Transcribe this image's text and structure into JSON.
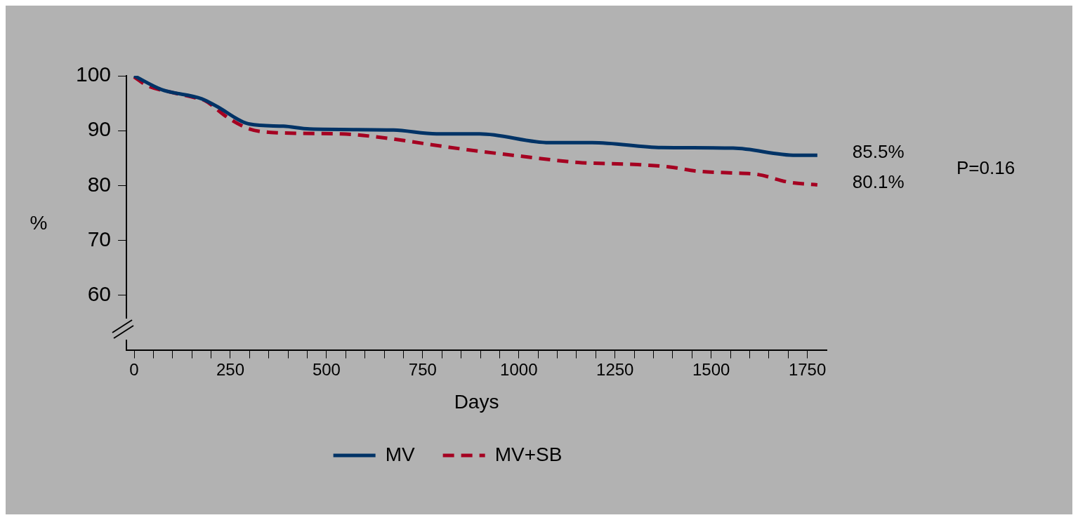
{
  "chart_data": {
    "type": "line",
    "xlabel": "Days",
    "ylabel": "%",
    "xlim": [
      -20,
      1800
    ],
    "ylim": [
      50,
      100
    ],
    "xticks": [
      {
        "value": 0,
        "label": "0"
      },
      {
        "value": 50,
        "label": null
      },
      {
        "value": 100,
        "label": null
      },
      {
        "value": 150,
        "label": null
      },
      {
        "value": 200,
        "label": null
      },
      {
        "value": 250,
        "label": "250"
      },
      {
        "value": 300,
        "label": null
      },
      {
        "value": 350,
        "label": null
      },
      {
        "value": 400,
        "label": null
      },
      {
        "value": 450,
        "label": null
      },
      {
        "value": 500,
        "label": "500"
      },
      {
        "value": 550,
        "label": null
      },
      {
        "value": 600,
        "label": null
      },
      {
        "value": 650,
        "label": null
      },
      {
        "value": 700,
        "label": null
      },
      {
        "value": 750,
        "label": "750"
      },
      {
        "value": 800,
        "label": null
      },
      {
        "value": 850,
        "label": null
      },
      {
        "value": 900,
        "label": null
      },
      {
        "value": 950,
        "label": null
      },
      {
        "value": 1000,
        "label": "1000"
      },
      {
        "value": 1050,
        "label": null
      },
      {
        "value": 1100,
        "label": null
      },
      {
        "value": 1150,
        "label": null
      },
      {
        "value": 1200,
        "label": null
      },
      {
        "value": 1250,
        "label": "1250"
      },
      {
        "value": 1300,
        "label": null
      },
      {
        "value": 1350,
        "label": null
      },
      {
        "value": 1400,
        "label": null
      },
      {
        "value": 1450,
        "label": null
      },
      {
        "value": 1500,
        "label": "1500"
      },
      {
        "value": 1550,
        "label": null
      },
      {
        "value": 1600,
        "label": null
      },
      {
        "value": 1650,
        "label": null
      },
      {
        "value": 1700,
        "label": null
      },
      {
        "value": 1750,
        "label": "1750"
      }
    ],
    "yticks": [
      60,
      70,
      80,
      90,
      100
    ],
    "grid": false,
    "legend": "bottom",
    "marker": "none",
    "series": [
      {
        "name": "MV",
        "color": "#003366",
        "line_style": "solid",
        "x": [
          0,
          71,
          176,
          213,
          300,
          388,
          456,
          674,
          786,
          898,
          1079,
          1191,
          1371,
          1557,
          1720,
          1776
        ],
        "values": [
          100,
          97.5,
          95.8,
          94.5,
          91.2,
          90.8,
          90.3,
          90.1,
          89.4,
          89.4,
          87.8,
          87.8,
          86.9,
          86.8,
          85.5,
          85.5
        ]
      },
      {
        "name": "MV+SB",
        "color": "#a50021",
        "line_style": "dashed",
        "x": [
          0,
          34,
          90,
          164,
          183,
          245,
          300,
          375,
          538,
          612,
          846,
          997,
          1154,
          1309,
          1389,
          1464,
          1546,
          1621,
          1701,
          1776
        ],
        "values": [
          99.8,
          98.2,
          97.1,
          95.9,
          95.5,
          92.3,
          90.3,
          89.6,
          89.4,
          89,
          86.7,
          85.4,
          84.2,
          83.8,
          83.4,
          82.6,
          82.3,
          82,
          80.6,
          80.1
        ]
      }
    ],
    "annotations": [
      {
        "text": "85.5%",
        "x": 1776,
        "y": 85.5
      },
      {
        "text": "80.1%",
        "x": 1776,
        "y": 80.1
      },
      "P=0.16"
    ]
  }
}
